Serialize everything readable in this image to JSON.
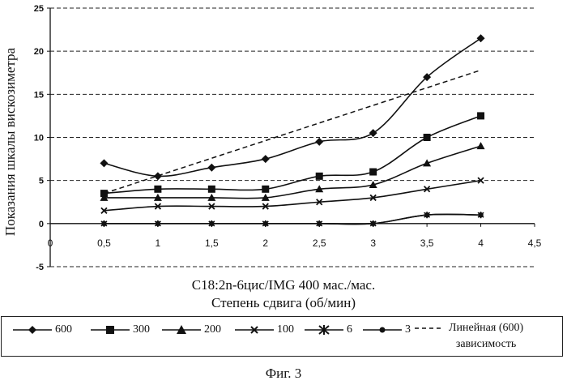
{
  "chart_data": {
    "type": "line",
    "ylabel": "Показания шкалы вискозиметра",
    "subtitle": "C18:2n-6цис/IMG 400 мас./мас.",
    "xlabel": "Степень сдвига (об/мин)",
    "xlim": [
      0,
      4.5
    ],
    "ylim": [
      -5,
      25
    ],
    "x_ticks": [
      "0",
      "0,5",
      "1",
      "1,5",
      "2",
      "2,5",
      "3",
      "3,5",
      "4",
      "4,5"
    ],
    "y_ticks": [
      "-5",
      "0",
      "5",
      "10",
      "15",
      "20",
      "25"
    ],
    "grid": "horizontal dashed",
    "legend_position": "bottom",
    "series": [
      {
        "name": "600",
        "marker": "diamond",
        "x": [
          0.5,
          1,
          1.5,
          2,
          2.5,
          3,
          3.5,
          4
        ],
        "values": [
          7,
          5.5,
          6.5,
          7.5,
          9.5,
          10.5,
          17,
          21.5
        ]
      },
      {
        "name": "300",
        "marker": "square",
        "x": [
          0.5,
          1,
          1.5,
          2,
          2.5,
          3,
          3.5,
          4
        ],
        "values": [
          3.5,
          4,
          4,
          4,
          5.5,
          6,
          10,
          12.5
        ]
      },
      {
        "name": "200",
        "marker": "triangle",
        "x": [
          0.5,
          1,
          1.5,
          2,
          2.5,
          3,
          3.5,
          4
        ],
        "values": [
          3,
          3,
          3,
          3,
          4,
          4.5,
          7,
          9
        ]
      },
      {
        "name": "100",
        "marker": "x",
        "x": [
          0.5,
          1,
          1.5,
          2,
          2.5,
          3,
          3.5,
          4
        ],
        "values": [
          1.5,
          2,
          2,
          2,
          2.5,
          3,
          4,
          5
        ]
      },
      {
        "name": "6",
        "marker": "star",
        "x": [
          0.5,
          1,
          1.5,
          2,
          2.5,
          3,
          3.5,
          4
        ],
        "values": [
          0,
          0,
          0,
          0,
          0,
          0,
          1,
          1
        ]
      },
      {
        "name": "3",
        "marker": "circle",
        "x": [
          0.5,
          1,
          1.5,
          2,
          2.5,
          3,
          3.5,
          4
        ],
        "values": [
          0,
          0,
          0,
          0,
          0,
          0,
          1,
          1
        ]
      },
      {
        "name": "Линейная (600) зависимость",
        "style": "dashed",
        "x": [
          0.5,
          4
        ],
        "values": [
          3.5,
          17.8
        ]
      }
    ]
  },
  "legend": {
    "items": [
      "600",
      "300",
      "200",
      "100",
      "6",
      "3"
    ],
    "trend_label_1": "Линейная (600)",
    "trend_label_2": "зависимость"
  },
  "figure_caption": "Фиг. 3"
}
